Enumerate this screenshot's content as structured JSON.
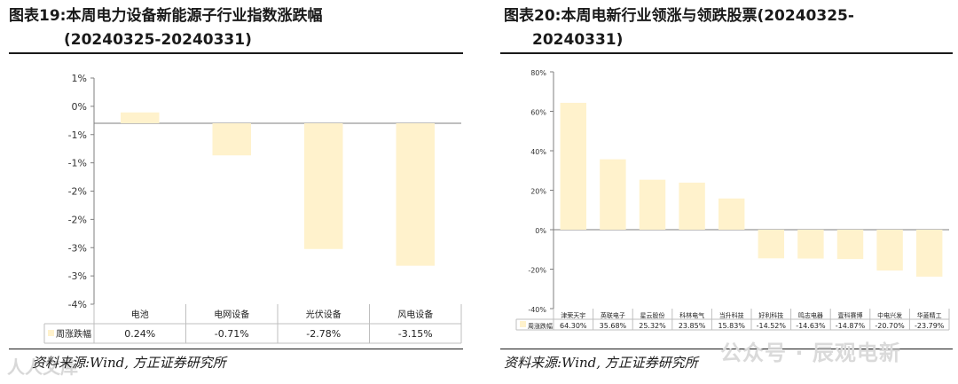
{
  "left": {
    "title_line1": "图表19:本周电力设备新能源子行业指数涨跌幅",
    "title_line2": "(20240325-20240331)",
    "source": "资料来源:Wind, 方正证券研究所",
    "watermark": "人人文库"
  },
  "right": {
    "title_line1": "图表20:本周电新行业领涨与领跌股票(20240325-",
    "title_line2": "20240331)",
    "source": "资料来源:Wind, 方正证券研究所",
    "watermark": "公众号 · 辰观电新"
  },
  "colors": {
    "bar": "#fff2cc",
    "axis": "#7f7f7f",
    "grid": "#bfbfbf",
    "legend": "#fff2cc"
  },
  "chart_data": [
    {
      "type": "bar",
      "categories": [
        "电池",
        "电网设备",
        "光伏设备",
        "风电设备"
      ],
      "series": [
        {
          "name": "周涨跌幅",
          "values": [
            0.24,
            -0.71,
            -2.78,
            -3.15
          ]
        }
      ],
      "data_labels": [
        "0.24%",
        "-0.71%",
        "-2.78%",
        "-3.15%"
      ],
      "yticks": [
        "1%",
        "0%",
        "-1%",
        "-1%",
        "-2%",
        "-2%",
        "-3%",
        "-3%",
        "-4%"
      ],
      "ylim": [
        -4,
        1
      ],
      "grid": false,
      "legend": "data-table"
    },
    {
      "type": "bar",
      "categories": [
        "津荣天宇",
        "英联电子",
        "星云股份",
        "科林电气",
        "当升科技",
        "好利科技",
        "鸣志电器",
        "壹科赛博",
        "中电兴发",
        "华菱精工"
      ],
      "series": [
        {
          "name": "周涨跌幅",
          "values": [
            64.3,
            35.68,
            25.32,
            23.85,
            15.83,
            -14.52,
            -14.63,
            -14.87,
            -20.7,
            -23.79
          ]
        }
      ],
      "data_labels": [
        "64.30%",
        "35.68%",
        "25.32%",
        "23.85%",
        "15.83%",
        "-14.52%",
        "-14.63%",
        "-14.87%",
        "-20.70%",
        "-23.79%"
      ],
      "yticks": [
        "80%",
        "60%",
        "40%",
        "20%",
        "0%",
        "-20%",
        "-40%"
      ],
      "ylim": [
        -40,
        80
      ],
      "grid": false,
      "legend": "data-table"
    }
  ]
}
